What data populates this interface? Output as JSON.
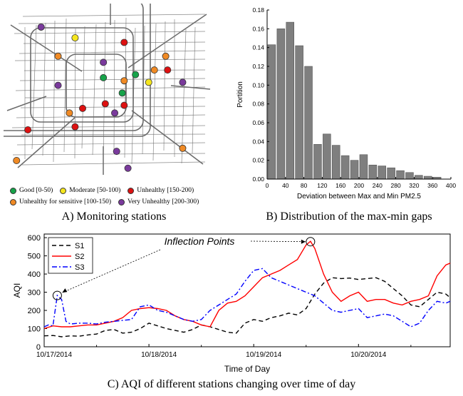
{
  "captions": {
    "a": "A) Monitoring stations",
    "b": "B) Distribution of the max-min gaps",
    "c": "C) AQI of different stations changing over time of day"
  },
  "colors": {
    "good": "#17a34a",
    "moderate": "#f5e61e",
    "unhealthy": "#dd1111",
    "sensitive": "#f08a24",
    "very_unhealthy": "#7a3a9c",
    "bar": "#7f7f7f",
    "s1": "#000000",
    "s2": "#ff0000",
    "s3": "#0000ff"
  },
  "map_legend": [
    {
      "label": "Good [0-50)",
      "color": "#17a34a"
    },
    {
      "label": "Moderate [50-100)",
      "color": "#f5e61e"
    },
    {
      "label": "Unhealthy [150-200)",
      "color": "#dd1111"
    },
    {
      "label": "Unhealthy for sensitive [100-150)",
      "color": "#f08a24"
    },
    {
      "label": "Very Unhealthy [200-300)",
      "color": "#7a3a9c"
    }
  ],
  "chart_data": [
    {
      "id": "stations-map",
      "type": "scatter",
      "categories": [
        "good",
        "moderate",
        "unhealthy",
        "sensitive",
        "very_unhealthy"
      ],
      "points": [
        {
          "x": 0.18,
          "y": 0.13,
          "cat": "very_unhealthy"
        },
        {
          "x": 0.36,
          "y": 0.2,
          "cat": "moderate"
        },
        {
          "x": 0.62,
          "y": 0.23,
          "cat": "unhealthy"
        },
        {
          "x": 0.27,
          "y": 0.32,
          "cat": "sensitive"
        },
        {
          "x": 0.51,
          "y": 0.36,
          "cat": "very_unhealthy"
        },
        {
          "x": 0.84,
          "y": 0.32,
          "cat": "sensitive"
        },
        {
          "x": 0.78,
          "y": 0.41,
          "cat": "sensitive"
        },
        {
          "x": 0.85,
          "y": 0.41,
          "cat": "unhealthy"
        },
        {
          "x": 0.68,
          "y": 0.44,
          "cat": "good"
        },
        {
          "x": 0.51,
          "y": 0.46,
          "cat": "good"
        },
        {
          "x": 0.62,
          "y": 0.48,
          "cat": "sensitive"
        },
        {
          "x": 0.75,
          "y": 0.49,
          "cat": "moderate"
        },
        {
          "x": 0.27,
          "y": 0.51,
          "cat": "very_unhealthy"
        },
        {
          "x": 0.61,
          "y": 0.56,
          "cat": "good"
        },
        {
          "x": 0.52,
          "y": 0.63,
          "cat": "unhealthy"
        },
        {
          "x": 0.62,
          "y": 0.64,
          "cat": "unhealthy"
        },
        {
          "x": 0.4,
          "y": 0.66,
          "cat": "unhealthy"
        },
        {
          "x": 0.33,
          "y": 0.69,
          "cat": "sensitive"
        },
        {
          "x": 0.57,
          "y": 0.69,
          "cat": "very_unhealthy"
        },
        {
          "x": 0.36,
          "y": 0.78,
          "cat": "unhealthy"
        },
        {
          "x": 0.11,
          "y": 0.8,
          "cat": "unhealthy"
        },
        {
          "x": 0.93,
          "y": 0.49,
          "cat": "very_unhealthy"
        },
        {
          "x": 0.58,
          "y": 0.94,
          "cat": "very_unhealthy"
        },
        {
          "x": 0.93,
          "y": 0.92,
          "cat": "sensitive"
        },
        {
          "x": 0.05,
          "y": 1.0,
          "cat": "sensitive"
        },
        {
          "x": 0.64,
          "y": 1.05,
          "cat": "very_unhealthy"
        }
      ]
    },
    {
      "id": "max-min-distribution",
      "type": "bar",
      "xlabel": "Deviation between Max and Min PM2.5",
      "ylabel": "Portition",
      "xlim": [
        0,
        400
      ],
      "ylim": [
        0,
        0.18
      ],
      "xticks": [
        0,
        40,
        80,
        120,
        160,
        200,
        240,
        280,
        320,
        360,
        400
      ],
      "yticks": [
        0.0,
        0.02,
        0.04,
        0.06,
        0.08,
        0.1,
        0.12,
        0.14,
        0.16,
        0.18
      ],
      "bin_width": 20,
      "bin_starts": [
        10,
        30,
        50,
        70,
        90,
        110,
        130,
        150,
        170,
        190,
        210,
        230,
        250,
        270,
        290,
        310,
        330,
        350,
        370
      ],
      "values": [
        0.143,
        0.16,
        0.167,
        0.142,
        0.12,
        0.037,
        0.048,
        0.036,
        0.025,
        0.02,
        0.026,
        0.015,
        0.014,
        0.012,
        0.009,
        0.007,
        0.004,
        0.003,
        0.002
      ]
    },
    {
      "id": "aqi-over-time",
      "type": "line",
      "xlabel": "Time of Day",
      "ylabel": "AQI",
      "xlim": [
        0,
        93
      ],
      "ylim": [
        0,
        620
      ],
      "xtick_labels": [
        "10/17/2014",
        "10/18/2014",
        "10/19/2014",
        "10/20/2014"
      ],
      "xtick_pos": [
        0,
        24,
        48,
        72
      ],
      "yticks": [
        0,
        100,
        200,
        300,
        400,
        500,
        600
      ],
      "annotation": "Inflection Points",
      "inflection_points": [
        {
          "x": 3,
          "y": 282
        },
        {
          "x": 61,
          "y": 578
        }
      ],
      "series": [
        {
          "name": "S1",
          "color": "#000000",
          "dash": "6,4",
          "x": [
            0,
            2,
            4,
            6,
            8,
            10,
            12,
            14,
            16,
            18,
            20,
            22,
            24,
            26,
            28,
            30,
            32,
            34,
            36,
            38,
            40,
            42,
            44,
            46,
            48,
            50,
            52,
            54,
            56,
            58,
            60,
            62,
            64,
            66,
            68,
            70,
            72,
            74,
            76,
            78,
            80,
            82,
            84,
            86,
            88,
            90,
            92,
            93
          ],
          "y": [
            60,
            62,
            55,
            60,
            58,
            65,
            70,
            90,
            95,
            75,
            80,
            100,
            130,
            115,
            100,
            90,
            80,
            95,
            120,
            110,
            95,
            80,
            75,
            130,
            150,
            140,
            160,
            170,
            185,
            175,
            210,
            290,
            350,
            380,
            375,
            378,
            370,
            375,
            380,
            360,
            320,
            280,
            230,
            220,
            260,
            300,
            290,
            270
          ]
        },
        {
          "name": "S2",
          "color": "#ff0000",
          "dash": "",
          "x": [
            0,
            2,
            4,
            6,
            8,
            10,
            12,
            14,
            16,
            18,
            20,
            22,
            24,
            26,
            28,
            30,
            32,
            34,
            36,
            38,
            40,
            42,
            44,
            46,
            48,
            50,
            52,
            54,
            56,
            58,
            60,
            61,
            62,
            64,
            66,
            68,
            70,
            72,
            74,
            76,
            78,
            80,
            82,
            84,
            86,
            88,
            90,
            92,
            93
          ],
          "y": [
            100,
            115,
            110,
            110,
            115,
            120,
            120,
            130,
            140,
            160,
            200,
            210,
            215,
            210,
            200,
            170,
            150,
            140,
            120,
            110,
            200,
            240,
            250,
            280,
            330,
            380,
            400,
            420,
            450,
            480,
            560,
            580,
            540,
            400,
            300,
            250,
            280,
            300,
            250,
            260,
            260,
            240,
            230,
            250,
            260,
            280,
            390,
            450,
            460
          ]
        },
        {
          "name": "S3",
          "color": "#0000ff",
          "dash": "7,3,2,3",
          "x": [
            0,
            1,
            2,
            3,
            4,
            5,
            6,
            8,
            10,
            12,
            14,
            16,
            18,
            20,
            22,
            24,
            26,
            28,
            30,
            32,
            34,
            36,
            38,
            40,
            42,
            44,
            46,
            48,
            50,
            52,
            54,
            56,
            58,
            60,
            62,
            64,
            66,
            68,
            70,
            72,
            74,
            76,
            78,
            80,
            82,
            84,
            86,
            88,
            90,
            92,
            93
          ],
          "y": [
            110,
            120,
            115,
            282,
            260,
            140,
            125,
            130,
            130,
            125,
            135,
            140,
            145,
            150,
            220,
            230,
            200,
            190,
            170,
            150,
            140,
            150,
            200,
            230,
            260,
            290,
            360,
            420,
            430,
            380,
            360,
            340,
            320,
            300,
            280,
            240,
            200,
            190,
            200,
            210,
            160,
            170,
            180,
            170,
            140,
            110,
            130,
            200,
            250,
            240,
            250
          ]
        }
      ]
    }
  ]
}
